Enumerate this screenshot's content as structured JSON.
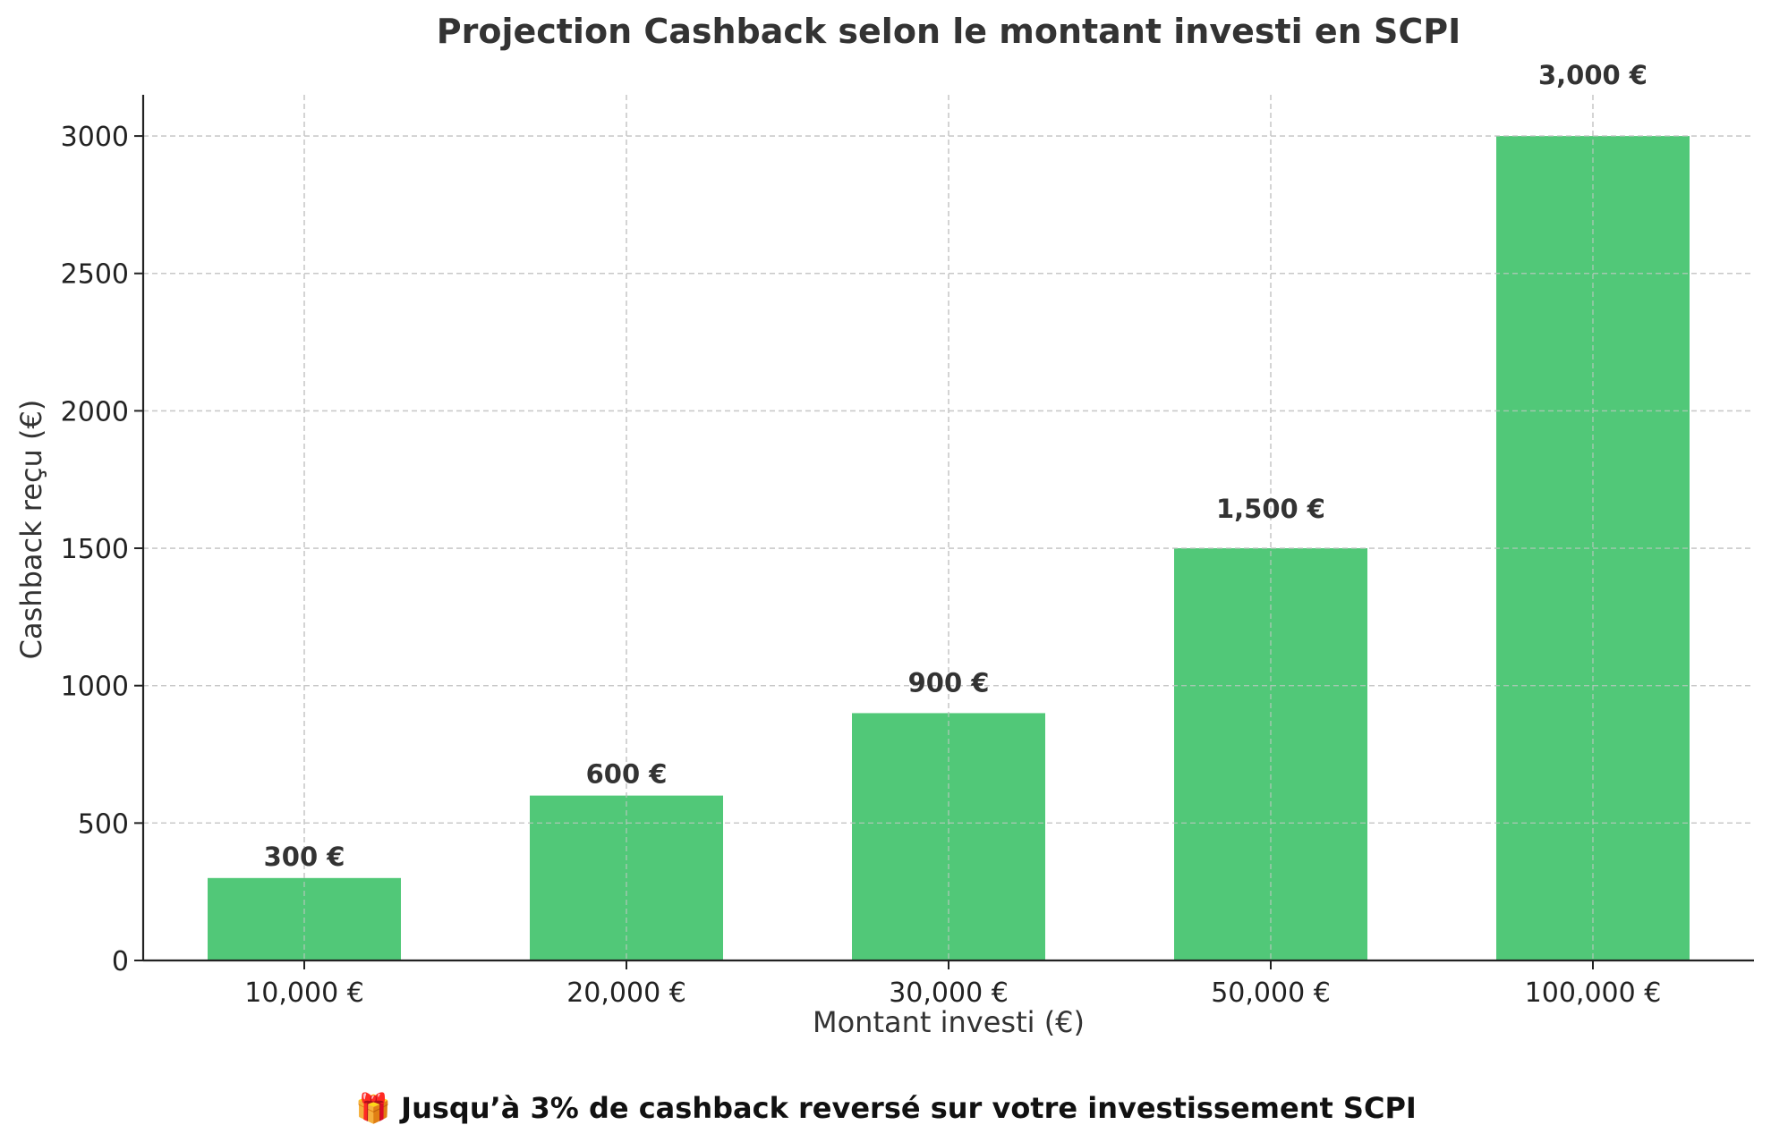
{
  "chart_data": {
    "type": "bar",
    "title": "Projection Cashback selon le montant investi en SCPI",
    "xlabel": "Montant investi (€)",
    "ylabel": "Cashback reçu (€)",
    "categories": [
      "10,000 €",
      "20,000 €",
      "30,000 €",
      "50,000 €",
      "100,000 €"
    ],
    "values": [
      300,
      600,
      900,
      1500,
      3000
    ],
    "data_labels": [
      "300 €",
      "600 €",
      "900 €",
      "1,500 €",
      "3,000 €"
    ],
    "yticks": [
      0,
      500,
      1000,
      1500,
      2000,
      2500,
      3000
    ],
    "ylim": [
      0,
      3150
    ],
    "grid": true,
    "bar_color": "#51c878",
    "footnote": "🎁 Jusqu’à 3% de cashback reversé sur votre investissement SCPI"
  }
}
